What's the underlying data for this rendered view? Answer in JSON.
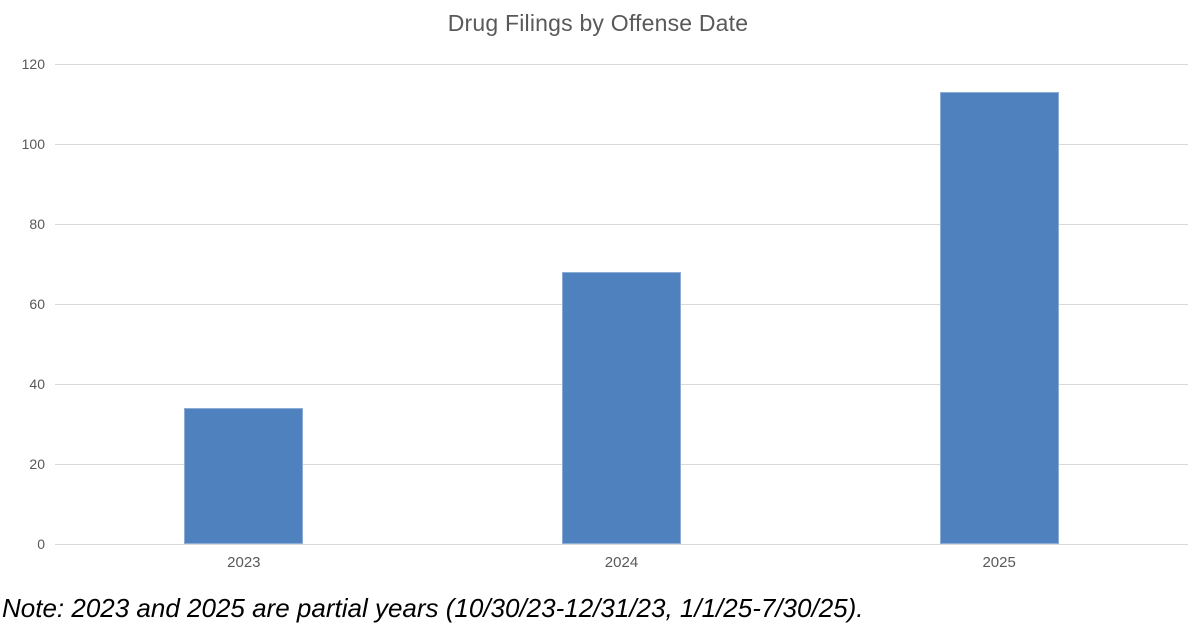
{
  "chart_data": {
    "type": "bar",
    "title": "Drug Filings by Offense Date",
    "categories": [
      "2023",
      "2024",
      "2025"
    ],
    "values": [
      34,
      68,
      113
    ],
    "xlabel": "",
    "ylabel": "",
    "ylim": [
      0,
      120
    ],
    "yticks": [
      0,
      20,
      40,
      60,
      80,
      100,
      120
    ],
    "ytick_labels": [
      "0",
      "20",
      "40",
      "60",
      "80",
      "100",
      "120"
    ],
    "grid": "horizontal",
    "legend": "none",
    "bar_color": "#4e81bd",
    "gridline_color": "#d9d9d9",
    "axis_text_color": "#595959",
    "title_color": "#595959"
  },
  "note": {
    "text": "Note: 2023 and 2025 are partial years (10/30/23-12/31/23, 1/1/25-7/30/25)."
  }
}
